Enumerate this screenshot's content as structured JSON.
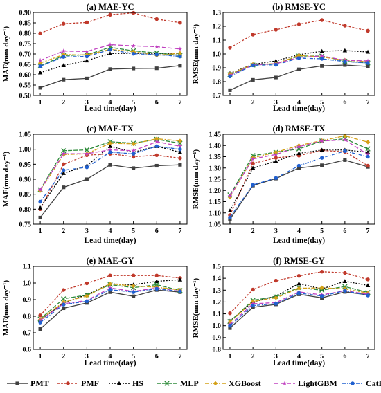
{
  "models": [
    {
      "name": "PMT",
      "color": "#404040",
      "dash": "",
      "marker": "square"
    },
    {
      "name": "PMF",
      "color": "#c0392b",
      "dash": "3,2",
      "marker": "circle"
    },
    {
      "name": "HS",
      "color": "#000000",
      "dash": "2,2",
      "marker": "triangle"
    },
    {
      "name": "MLP",
      "color": "#2e8b3a",
      "dash": "6,2",
      "marker": "x"
    },
    {
      "name": "XGBoost",
      "color": "#d4a017",
      "dash": "6,2,2,2",
      "marker": "diamond"
    },
    {
      "name": "LightGBM",
      "color": "#c040c0",
      "dash": "6,3",
      "marker": "star"
    },
    {
      "name": "CatBoost",
      "color": "#2060d0",
      "dash": "5,2,1,2",
      "marker": "circle"
    }
  ],
  "chart_data": [
    {
      "type": "line",
      "title": "(a) MAE-YC",
      "xlabel": "Lead time(day)",
      "ylabel": "MAE(mm day⁻¹)",
      "x": [
        1,
        2,
        3,
        4,
        5,
        6,
        7
      ],
      "ylim": [
        0.5,
        0.9
      ],
      "yticks": [
        "0.50",
        "0.55",
        "0.60",
        "0.65",
        "0.70",
        "0.75",
        "0.80",
        "0.85",
        "0.90"
      ],
      "series": [
        {
          "name": "PMT",
          "values": [
            0.537,
            0.576,
            0.582,
            0.627,
            0.63,
            0.631,
            0.644
          ]
        },
        {
          "name": "PMF",
          "values": [
            0.799,
            0.846,
            0.852,
            0.889,
            0.898,
            0.868,
            0.851
          ]
        },
        {
          "name": "HS",
          "values": [
            0.61,
            0.645,
            0.668,
            0.702,
            0.703,
            0.702,
            0.701
          ]
        },
        {
          "name": "MLP",
          "values": [
            0.642,
            0.692,
            0.696,
            0.732,
            0.715,
            0.705,
            0.693
          ]
        },
        {
          "name": "XGBoost",
          "values": [
            0.656,
            0.697,
            0.695,
            0.722,
            0.711,
            0.693,
            0.704
          ]
        },
        {
          "name": "LightGBM",
          "values": [
            0.669,
            0.714,
            0.712,
            0.745,
            0.739,
            0.735,
            0.724
          ]
        },
        {
          "name": "CatBoost",
          "values": [
            0.641,
            0.686,
            0.688,
            0.721,
            0.701,
            0.697,
            0.688
          ]
        }
      ]
    },
    {
      "type": "line",
      "title": "(b) RMSE-YC",
      "xlabel": "Lead time(day)",
      "ylabel": "RMSE(mm day⁻¹)",
      "x": [
        1,
        2,
        3,
        4,
        5,
        6,
        7
      ],
      "ylim": [
        0.7,
        1.3
      ],
      "yticks": [
        "0.7",
        "0.8",
        "0.9",
        "1.0",
        "1.1",
        "1.2",
        "1.3"
      ],
      "series": [
        {
          "name": "PMT",
          "values": [
            0.738,
            0.813,
            0.83,
            0.889,
            0.914,
            0.92,
            0.91
          ]
        },
        {
          "name": "PMF",
          "values": [
            1.045,
            1.14,
            1.175,
            1.215,
            1.245,
            1.205,
            1.168
          ]
        },
        {
          "name": "HS",
          "values": [
            0.86,
            0.925,
            0.95,
            0.995,
            1.02,
            1.025,
            1.015
          ]
        },
        {
          "name": "MLP",
          "values": [
            0.85,
            0.92,
            0.928,
            0.985,
            0.985,
            0.948,
            0.935
          ]
        },
        {
          "name": "XGBoost",
          "values": [
            0.855,
            0.925,
            0.93,
            0.99,
            0.978,
            0.955,
            0.945
          ]
        },
        {
          "name": "LightGBM",
          "values": [
            0.845,
            0.92,
            0.93,
            0.975,
            0.985,
            0.955,
            0.95
          ]
        },
        {
          "name": "CatBoost",
          "values": [
            0.838,
            0.918,
            0.922,
            0.97,
            0.965,
            0.945,
            0.935
          ]
        }
      ]
    },
    {
      "type": "line",
      "title": "(c) MAE-TX",
      "xlabel": "Lead time(day)",
      "ylabel": "MAE(mm day⁻¹)",
      "x": [
        1,
        2,
        3,
        4,
        5,
        6,
        7
      ],
      "ylim": [
        0.75,
        1.05
      ],
      "yticks": [
        "0.75",
        "0.80",
        "0.85",
        "0.90",
        "0.95",
        "1.00",
        "1.05"
      ],
      "series": [
        {
          "name": "PMT",
          "values": [
            0.772,
            0.873,
            0.9,
            0.948,
            0.937,
            0.945,
            0.948
          ]
        },
        {
          "name": "PMF",
          "values": [
            0.8,
            0.95,
            0.98,
            0.985,
            0.975,
            0.98,
            0.97
          ]
        },
        {
          "name": "HS",
          "values": [
            0.805,
            0.92,
            0.945,
            1.01,
            0.99,
            1.01,
            0.99
          ]
        },
        {
          "name": "MLP",
          "values": [
            0.865,
            0.995,
            0.998,
            1.025,
            1.02,
            1.033,
            1.02
          ]
        },
        {
          "name": "XGBoost",
          "values": [
            0.862,
            0.982,
            0.985,
            1.02,
            1.018,
            1.035,
            1.028
          ]
        },
        {
          "name": "LightGBM",
          "values": [
            0.865,
            0.985,
            0.985,
            0.998,
            0.995,
            1.025,
            1.01
          ]
        },
        {
          "name": "CatBoost",
          "values": [
            0.825,
            0.93,
            0.94,
            0.99,
            0.985,
            1.01,
            1.0
          ]
        }
      ]
    },
    {
      "type": "line",
      "title": "(d) RMSE-TX",
      "xlabel": "Lead time(day)",
      "ylabel": "RMSE(mm day⁻¹)",
      "x": [
        1,
        2,
        3,
        4,
        5,
        6,
        7
      ],
      "ylim": [
        1.05,
        1.45
      ],
      "yticks": [
        "1.05",
        "1.10",
        "1.15",
        "1.20",
        "1.25",
        "1.30",
        "1.35",
        "1.40",
        "1.45"
      ],
      "series": [
        {
          "name": "PMT",
          "values": [
            1.072,
            1.222,
            1.253,
            1.3,
            1.312,
            1.335,
            1.305
          ]
        },
        {
          "name": "PMF",
          "values": [
            1.09,
            1.32,
            1.345,
            1.355,
            1.378,
            1.372,
            1.31
          ]
        },
        {
          "name": "HS",
          "values": [
            1.11,
            1.3,
            1.33,
            1.365,
            1.38,
            1.38,
            1.37
          ]
        },
        {
          "name": "MLP",
          "values": [
            1.18,
            1.355,
            1.37,
            1.385,
            1.42,
            1.43,
            1.385
          ]
        },
        {
          "name": "XGBoost",
          "values": [
            1.17,
            1.345,
            1.37,
            1.4,
            1.422,
            1.443,
            1.415
          ]
        },
        {
          "name": "LightGBM",
          "values": [
            1.175,
            1.34,
            1.36,
            1.395,
            1.42,
            1.425,
            1.36
          ]
        },
        {
          "name": "CatBoost",
          "values": [
            1.08,
            1.225,
            1.255,
            1.31,
            1.345,
            1.375,
            1.35
          ]
        }
      ]
    },
    {
      "type": "line",
      "title": "(e) MAE-GY",
      "xlabel": "Lead time(day)",
      "ylabel": "MAE(mm day⁻¹)",
      "x": [
        1,
        2,
        3,
        4,
        5,
        6,
        7
      ],
      "ylim": [
        0.6,
        1.1
      ],
      "yticks": [
        "0.6",
        "0.7",
        "0.8",
        "0.9",
        "1.0",
        "1.1"
      ],
      "series": [
        {
          "name": "PMT",
          "values": [
            0.723,
            0.848,
            0.88,
            0.945,
            0.92,
            0.958,
            0.945
          ]
        },
        {
          "name": "PMF",
          "values": [
            0.805,
            0.958,
            0.998,
            1.045,
            1.045,
            1.045,
            1.03
          ]
        },
        {
          "name": "HS",
          "values": [
            0.775,
            0.88,
            0.93,
            0.995,
            0.99,
            1.01,
            1.02
          ]
        },
        {
          "name": "MLP",
          "values": [
            0.783,
            0.905,
            0.928,
            0.99,
            0.972,
            0.99,
            0.955
          ]
        },
        {
          "name": "XGBoost",
          "values": [
            0.78,
            0.885,
            0.922,
            0.995,
            0.982,
            0.975,
            0.958
          ]
        },
        {
          "name": "LightGBM",
          "values": [
            0.775,
            0.875,
            0.895,
            0.97,
            0.95,
            0.97,
            0.95
          ]
        },
        {
          "name": "CatBoost",
          "values": [
            0.762,
            0.87,
            0.89,
            0.96,
            0.945,
            0.965,
            0.95
          ]
        }
      ]
    },
    {
      "type": "line",
      "title": "(f) RMSE-GY",
      "xlabel": "Lead time(day)",
      "ylabel": "RMSE(mm day⁻¹)",
      "x": [
        1,
        2,
        3,
        4,
        5,
        6,
        7
      ],
      "ylim": [
        0.8,
        1.5
      ],
      "yticks": [
        "0.8",
        "0.9",
        "1.0",
        "1.1",
        "1.2",
        "1.3",
        "1.4",
        "1.5"
      ],
      "series": [
        {
          "name": "PMT",
          "values": [
            0.98,
            1.155,
            1.18,
            1.265,
            1.235,
            1.285,
            1.26
          ]
        },
        {
          "name": "PMF",
          "values": [
            1.105,
            1.305,
            1.38,
            1.42,
            1.455,
            1.445,
            1.39
          ]
        },
        {
          "name": "HS",
          "values": [
            1.04,
            1.2,
            1.25,
            1.355,
            1.31,
            1.375,
            1.34
          ]
        },
        {
          "name": "MLP",
          "values": [
            1.035,
            1.215,
            1.245,
            1.32,
            1.3,
            1.33,
            1.28
          ]
        },
        {
          "name": "XGBoost",
          "values": [
            1.03,
            1.205,
            1.235,
            1.315,
            1.32,
            1.31,
            1.275
          ]
        },
        {
          "name": "LightGBM",
          "values": [
            1.01,
            1.185,
            1.195,
            1.285,
            1.26,
            1.295,
            1.265
          ]
        },
        {
          "name": "CatBoost",
          "values": [
            1.0,
            1.17,
            1.185,
            1.275,
            1.25,
            1.295,
            1.255
          ]
        }
      ]
    }
  ]
}
